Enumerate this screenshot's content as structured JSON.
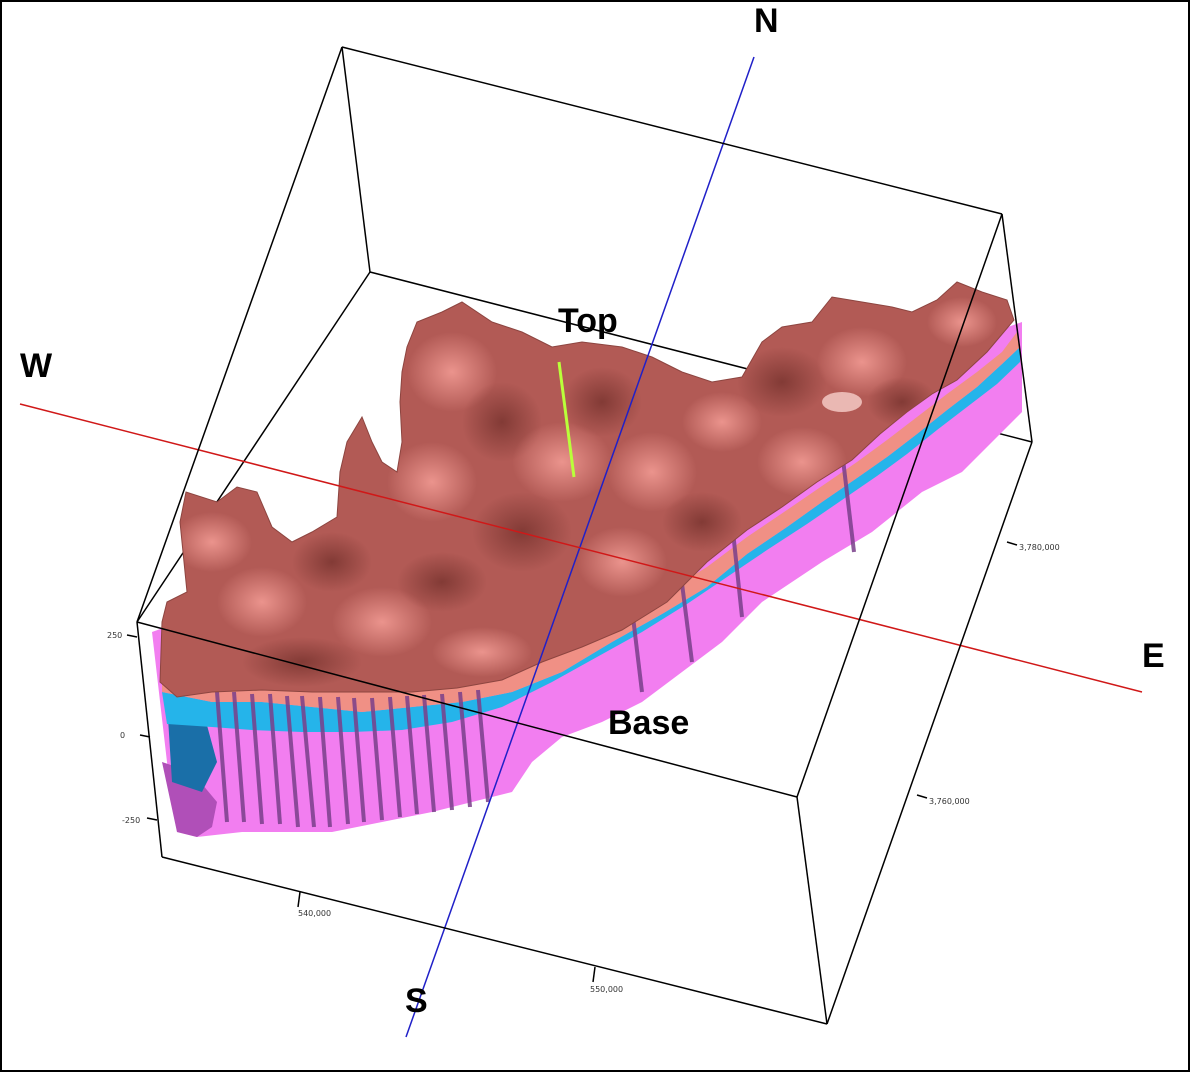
{
  "compass": {
    "north": "N",
    "south": "S",
    "east": "E",
    "west": "W"
  },
  "surfaces": {
    "top": "Top",
    "base": "Base"
  },
  "axis_ticks": {
    "elevation": [
      "250",
      "0",
      "-250"
    ],
    "easting": [
      "540,000",
      "550,000"
    ],
    "northing": [
      "3,780,000",
      "3,760,000"
    ]
  },
  "colors": {
    "top_surface": "#b25a55",
    "top_surface_light": "#e27a74",
    "salmon_band": "#f09085",
    "cyan_band": "#25b4ea",
    "dark_blue_band": "#1a6fa8",
    "magenta_body": "#f27ef0",
    "purple_base": "#b04fb8",
    "well_lines": "#7a3f8a",
    "ns_axis": "#2020c8",
    "ew_axis": "#d01818",
    "box_edges": "#000000"
  }
}
